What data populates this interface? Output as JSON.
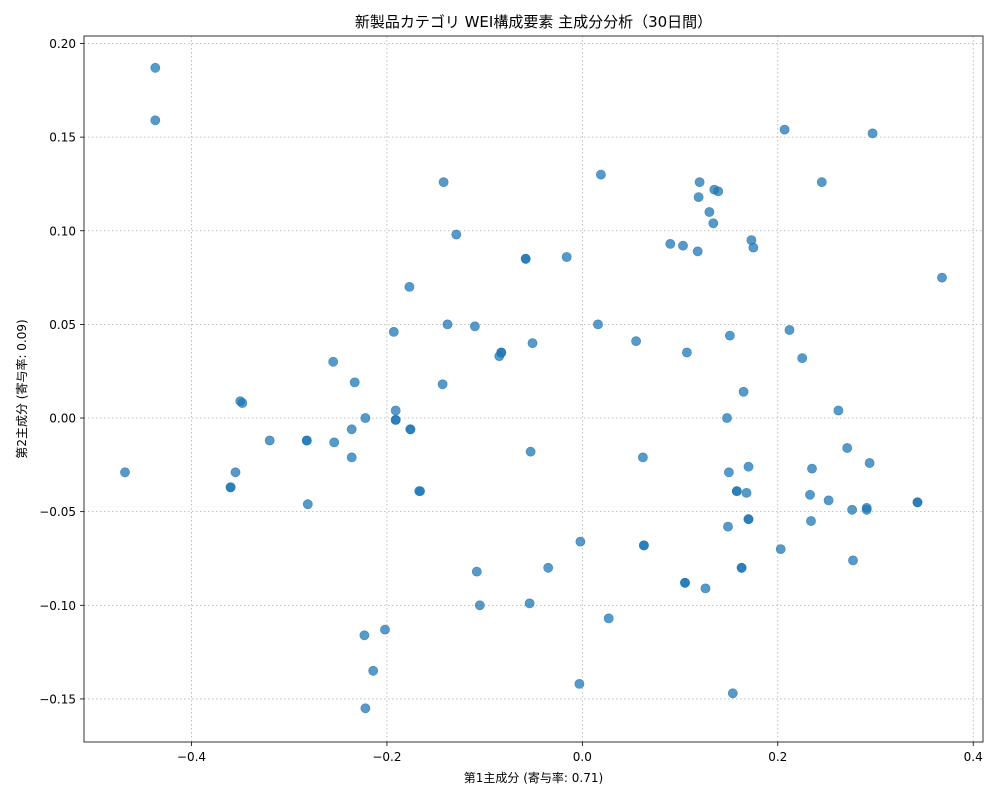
{
  "chart_data": {
    "type": "scatter",
    "title": "新製品カテゴリ WEI構成要素 主成分分析（30日間）",
    "xlabel": "第1主成分 (寄与率: 0.71)",
    "ylabel": "第2主成分 (寄与率: 0.09)",
    "xlim": [
      -0.51,
      0.41
    ],
    "ylim": [
      -0.173,
      0.204
    ],
    "xticks": [
      -0.4,
      -0.2,
      0.0,
      0.2,
      0.4
    ],
    "xtick_labels": [
      "−0.4",
      "−0.2",
      "0.0",
      "0.2",
      "0.4"
    ],
    "yticks": [
      -0.15,
      -0.1,
      -0.05,
      0.0,
      0.05,
      0.1,
      0.15,
      0.2
    ],
    "ytick_labels": [
      "−0.15",
      "−0.10",
      "−0.05",
      "0.00",
      "0.05",
      "0.10",
      "0.15",
      "0.20"
    ],
    "grid": true,
    "point_color": "#1f77b4",
    "point_opacity": 0.75,
    "points": [
      [
        -0.437,
        0.187
      ],
      [
        -0.437,
        0.159
      ],
      [
        -0.468,
        -0.029
      ],
      [
        -0.355,
        -0.029
      ],
      [
        -0.36,
        -0.037
      ],
      [
        -0.36,
        -0.037
      ],
      [
        -0.35,
        0.009
      ],
      [
        -0.348,
        0.008
      ],
      [
        -0.32,
        -0.012
      ],
      [
        -0.282,
        -0.012
      ],
      [
        -0.282,
        -0.012
      ],
      [
        -0.281,
        -0.046
      ],
      [
        -0.255,
        0.03
      ],
      [
        -0.254,
        -0.013
      ],
      [
        -0.233,
        0.019
      ],
      [
        -0.236,
        -0.006
      ],
      [
        -0.236,
        -0.021
      ],
      [
        -0.222,
        0.0
      ],
      [
        -0.223,
        -0.116
      ],
      [
        -0.222,
        -0.155
      ],
      [
        -0.214,
        -0.135
      ],
      [
        -0.202,
        -0.113
      ],
      [
        -0.193,
        0.046
      ],
      [
        -0.191,
        0.004
      ],
      [
        -0.191,
        -0.001
      ],
      [
        -0.191,
        -0.001
      ],
      [
        -0.177,
        0.07
      ],
      [
        -0.176,
        -0.006
      ],
      [
        -0.176,
        -0.006
      ],
      [
        -0.167,
        -0.039
      ],
      [
        -0.166,
        -0.039
      ],
      [
        -0.142,
        0.126
      ],
      [
        -0.143,
        0.018
      ],
      [
        -0.138,
        0.05
      ],
      [
        -0.129,
        0.098
      ],
      [
        -0.11,
        0.049
      ],
      [
        -0.108,
        -0.082
      ],
      [
        -0.105,
        -0.1
      ],
      [
        -0.085,
        0.033
      ],
      [
        -0.083,
        0.035
      ],
      [
        -0.083,
        0.035
      ],
      [
        -0.058,
        0.085
      ],
      [
        -0.058,
        0.085
      ],
      [
        -0.054,
        -0.099
      ],
      [
        -0.053,
        -0.018
      ],
      [
        -0.051,
        0.04
      ],
      [
        -0.035,
        -0.08
      ],
      [
        -0.016,
        0.086
      ],
      [
        -0.003,
        -0.142
      ],
      [
        -0.002,
        -0.066
      ],
      [
        0.016,
        0.05
      ],
      [
        0.019,
        0.13
      ],
      [
        0.027,
        -0.107
      ],
      [
        0.055,
        0.041
      ],
      [
        0.062,
        -0.021
      ],
      [
        0.063,
        -0.068
      ],
      [
        0.063,
        -0.068
      ],
      [
        0.09,
        0.093
      ],
      [
        0.103,
        0.092
      ],
      [
        0.105,
        -0.088
      ],
      [
        0.105,
        -0.088
      ],
      [
        0.107,
        0.035
      ],
      [
        0.118,
        0.089
      ],
      [
        0.119,
        0.118
      ],
      [
        0.12,
        0.126
      ],
      [
        0.126,
        -0.091
      ],
      [
        0.13,
        0.11
      ],
      [
        0.134,
        0.104
      ],
      [
        0.135,
        0.122
      ],
      [
        0.139,
        0.121
      ],
      [
        0.148,
        0.0
      ],
      [
        0.149,
        -0.058
      ],
      [
        0.15,
        -0.029
      ],
      [
        0.151,
        0.044
      ],
      [
        0.154,
        -0.147
      ],
      [
        0.158,
        -0.039
      ],
      [
        0.158,
        -0.039
      ],
      [
        0.163,
        -0.08
      ],
      [
        0.163,
        -0.08
      ],
      [
        0.165,
        0.014
      ],
      [
        0.168,
        -0.04
      ],
      [
        0.17,
        -0.054
      ],
      [
        0.17,
        -0.054
      ],
      [
        0.17,
        -0.026
      ],
      [
        0.173,
        0.095
      ],
      [
        0.175,
        0.091
      ],
      [
        0.203,
        -0.07
      ],
      [
        0.207,
        0.154
      ],
      [
        0.212,
        0.047
      ],
      [
        0.225,
        0.032
      ],
      [
        0.233,
        -0.041
      ],
      [
        0.234,
        -0.055
      ],
      [
        0.235,
        -0.027
      ],
      [
        0.245,
        0.126
      ],
      [
        0.252,
        -0.044
      ],
      [
        0.262,
        0.004
      ],
      [
        0.271,
        -0.016
      ],
      [
        0.276,
        -0.049
      ],
      [
        0.277,
        -0.076
      ],
      [
        0.291,
        -0.048
      ],
      [
        0.291,
        -0.049
      ],
      [
        0.294,
        -0.024
      ],
      [
        0.297,
        0.152
      ],
      [
        0.343,
        -0.045
      ],
      [
        0.343,
        -0.045
      ],
      [
        0.368,
        0.075
      ]
    ]
  }
}
